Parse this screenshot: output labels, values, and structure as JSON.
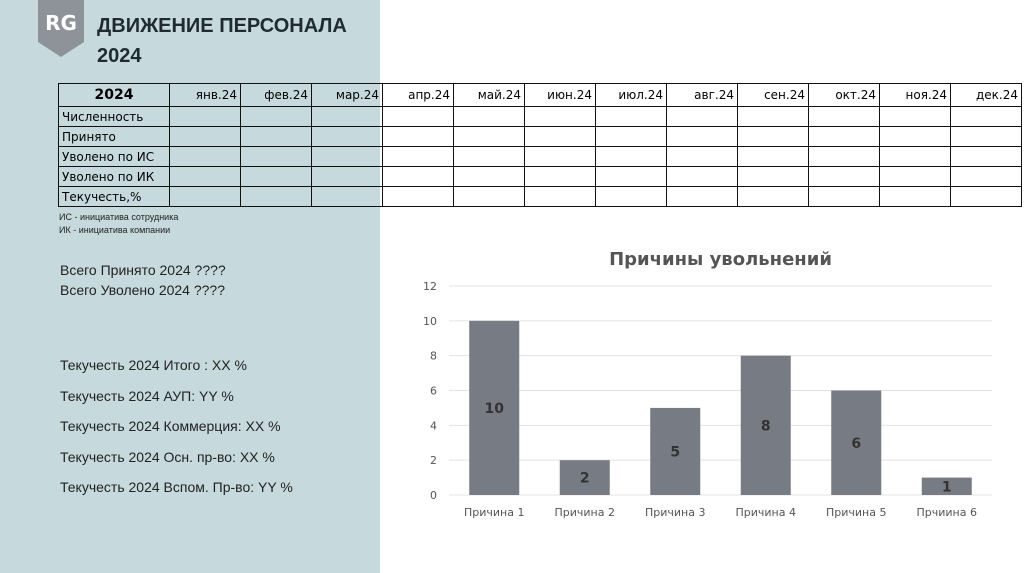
{
  "header": {
    "logo": "RG",
    "title": "ДВИЖЕНИЕ ПЕРСОНАЛА",
    "year": "2024"
  },
  "table": {
    "corner": "2024",
    "columns": [
      "янв.24",
      "фев.24",
      "мар.24",
      "апр.24",
      "май.24",
      "июн.24",
      "июл.24",
      "авг.24",
      "сен.24",
      "окт.24",
      "ноя.24",
      "дек.24"
    ],
    "rows": [
      "Численность",
      "Принято",
      "Уволено по ИС",
      "Уволено по ИК",
      "Текучесть,%"
    ]
  },
  "notes": [
    "ИС - инициатива сотрудника",
    "ИК - инициатива компании"
  ],
  "totals": [
    "Всего Принято 2024  ????",
    "Всего Уволено 2024  ????"
  ],
  "turnover": [
    "Текучесть 2024 Итого : ХХ %",
    "Текучесть 2024 АУП: YY %",
    "Текучесть 2024 Коммерция: ХХ %",
    "Текучесть 2024 Осн. пр-во: ХХ %",
    "Текучесть 2024 Вспом. Пр-во: YY %"
  ],
  "chart_data": {
    "type": "bar",
    "title": "Причины увольнений",
    "categories": [
      "Причина 1",
      "Причина 2",
      "Причина 3",
      "Причина 4",
      "Причина 5",
      "Прчиина 6"
    ],
    "values": [
      10,
      2,
      5,
      8,
      6,
      1
    ],
    "color": "#767b84",
    "ylim": [
      0,
      12
    ],
    "yticks": [
      0,
      2,
      4,
      6,
      8,
      10,
      12
    ],
    "grid": true
  }
}
